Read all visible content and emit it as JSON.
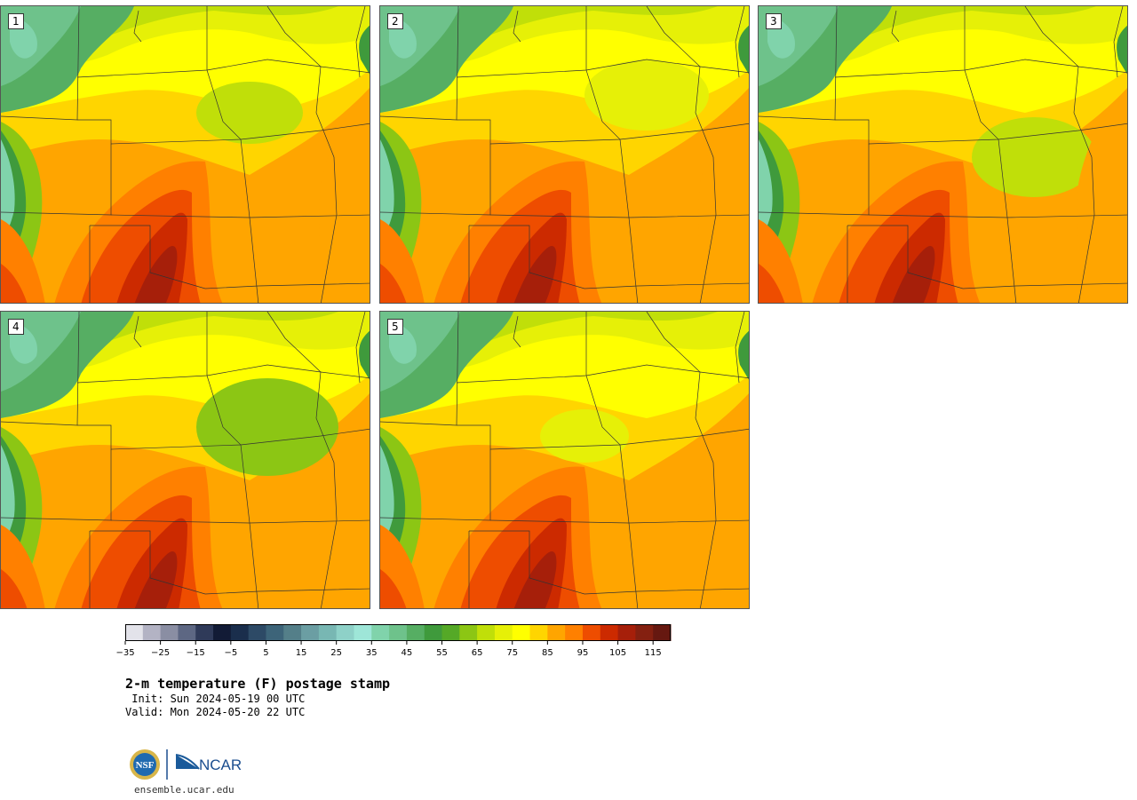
{
  "title": "2-m temperature (F) postage stamp",
  "init_label": " Init: Sun 2024-05-19 00 UTC",
  "valid_label": "Valid: Mon 2024-05-20 22 UTC",
  "site": "ensemble.ucar.edu",
  "logos": {
    "nsf": "NSF",
    "ncar": "NCAR"
  },
  "members": [
    "1",
    "2",
    "3",
    "4",
    "5"
  ],
  "colorbar": {
    "ticks": [
      "−35",
      "−25",
      "−15",
      "−5",
      "5",
      "15",
      "25",
      "35",
      "45",
      "55",
      "65",
      "75",
      "85",
      "95",
      "105",
      "115"
    ],
    "colors": [
      "#e3e3ea",
      "#b3b3c4",
      "#8a8ea3",
      "#5d6783",
      "#2f3a59",
      "#121b36",
      "#1a2e4c",
      "#2d4a66",
      "#3d6479",
      "#547f89",
      "#6b9ea3",
      "#78b7b3",
      "#8ed1c8",
      "#9ee6d8",
      "#80d3ab",
      "#6ec28b",
      "#56ae63",
      "#3f9a3c",
      "#55a927",
      "#8cc614",
      "#c0df09",
      "#e6f007",
      "#ffff00",
      "#ffd500",
      "#ffa500",
      "#ff8000",
      "#ee4d00",
      "#cc2a00",
      "#a61f0a",
      "#842010",
      "#661810"
    ]
  }
}
